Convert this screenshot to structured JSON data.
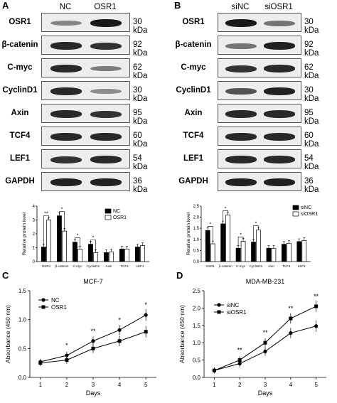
{
  "panels": {
    "A": {
      "letter": "A",
      "lanes": [
        "NC",
        "OSR1"
      ],
      "proteins": [
        "OSR1",
        "β-catenin",
        "C-myc",
        "CyclinD1",
        "Axin",
        "TCF4",
        "LEF1",
        "GAPDH"
      ],
      "sizes": [
        "30 kDa",
        "92 kDa",
        "62 kDa",
        "30 kDa",
        "95 kDa",
        "60 kDa",
        "54 kDa",
        "36 kDa"
      ],
      "band_intensity": [
        [
          0.3,
          0.95
        ],
        [
          0.85,
          0.8
        ],
        [
          0.85,
          0.35
        ],
        [
          0.85,
          0.25
        ],
        [
          0.85,
          0.8
        ],
        [
          0.85,
          0.85
        ],
        [
          0.8,
          0.85
        ],
        [
          0.9,
          0.9
        ]
      ]
    },
    "B": {
      "letter": "B",
      "lanes": [
        "siNC",
        "siOSR1"
      ],
      "proteins": [
        "OSR1",
        "β-catenin",
        "C-myc",
        "CyclinD1",
        "Axin",
        "TCF4",
        "LEF1",
        "GAPDH"
      ],
      "sizes": [
        "30 kDa",
        "92 kDa",
        "62 kDa",
        "30 kDa",
        "95 kDa",
        "60 kDa",
        "54 kDa",
        "36 kDa"
      ],
      "band_intensity": [
        [
          0.95,
          0.4
        ],
        [
          0.4,
          0.9
        ],
        [
          0.8,
          0.85
        ],
        [
          0.6,
          0.9
        ],
        [
          0.85,
          0.85
        ],
        [
          0.85,
          0.85
        ],
        [
          0.85,
          0.85
        ],
        [
          0.9,
          0.9
        ]
      ]
    },
    "C": {
      "letter": "C"
    },
    "D": {
      "letter": "D"
    }
  },
  "chart_data": [
    {
      "type": "bar",
      "panel": "A",
      "ylabel": "Relative protein level",
      "categories": [
        "OSR1",
        "β-catenin",
        "C-myc",
        "CyclinD1",
        "Axin",
        "TCF4",
        "LEF1"
      ],
      "ylim": [
        0,
        4
      ],
      "yticks": [
        "0",
        "1",
        "2",
        "3",
        "4"
      ],
      "series": [
        {
          "name": "NC",
          "color": "#000000",
          "values": [
            1.05,
            3.3,
            1.4,
            1.25,
            0.65,
            0.9,
            1.05
          ]
        },
        {
          "name": "OSR1",
          "color": "#ffffff",
          "values": [
            3.0,
            2.2,
            0.9,
            0.65,
            0.7,
            0.9,
            1.15
          ]
        }
      ],
      "significance": [
        {
          "category": 0,
          "label": "**"
        },
        {
          "category": 1,
          "label": "*"
        },
        {
          "category": 2,
          "label": "*"
        },
        {
          "category": 3,
          "label": "*"
        }
      ],
      "legend": "top-right"
    },
    {
      "type": "bar",
      "panel": "B",
      "ylabel": "Relative protein level",
      "categories": [
        "OSR1",
        "β-catenin",
        "C-myc",
        "CyclinD1",
        "Axin",
        "TCF4",
        "LEF1"
      ],
      "ylim": [
        0,
        2.5
      ],
      "yticks": [
        "0.0",
        "0.5",
        "1.0",
        "1.5",
        "2.0",
        "2.5"
      ],
      "series": [
        {
          "name": "siNC",
          "color": "#000000",
          "values": [
            1.4,
            1.7,
            0.6,
            0.88,
            0.6,
            0.78,
            0.9
          ]
        },
        {
          "name": "siOSR1",
          "color": "#ffffff",
          "values": [
            0.8,
            2.1,
            0.92,
            1.42,
            0.6,
            0.82,
            0.95
          ]
        }
      ],
      "significance": [
        {
          "category": 0,
          "label": "*"
        },
        {
          "category": 1,
          "label": "*"
        },
        {
          "category": 2,
          "label": "*"
        },
        {
          "category": 3,
          "label": "*"
        }
      ],
      "legend": "top-right"
    },
    {
      "type": "line",
      "panel": "C",
      "title": "MCF-7",
      "xlabel": "Days",
      "ylabel": "Absorbance (450 nm)",
      "x": [
        1,
        2,
        3,
        4,
        5
      ],
      "xlim": [
        0.6,
        5.4
      ],
      "ylim": [
        0,
        1.5
      ],
      "yticks": [
        "0.0",
        "0.5",
        "1.0",
        "1.5"
      ],
      "series": [
        {
          "name": "NC",
          "marker": "circle",
          "values": [
            0.27,
            0.38,
            0.63,
            0.82,
            1.08
          ]
        },
        {
          "name": "OSR1",
          "marker": "square",
          "values": [
            0.25,
            0.3,
            0.5,
            0.63,
            0.79
          ]
        }
      ],
      "annotations": [
        {
          "x": 2,
          "label": "*"
        },
        {
          "x": 3,
          "label": "**"
        },
        {
          "x": 4,
          "label": "*"
        },
        {
          "x": 5,
          "label": "*"
        }
      ],
      "legend": "top-left"
    },
    {
      "type": "line",
      "panel": "D",
      "title": "MDA-MB-231",
      "xlabel": "Days",
      "ylabel": "Absorbance (450 nm)",
      "x": [
        1,
        2,
        3,
        4,
        5
      ],
      "xlim": [
        0.6,
        5.4
      ],
      "ylim": [
        0,
        2.5
      ],
      "yticks": [
        "0.0",
        "0.5",
        "1.0",
        "1.5",
        "2.0",
        "2.5"
      ],
      "series": [
        {
          "name": "siNC",
          "marker": "circle",
          "values": [
            0.2,
            0.4,
            0.75,
            1.28,
            1.48
          ]
        },
        {
          "name": "siOSR1",
          "marker": "square",
          "values": [
            0.2,
            0.5,
            1.0,
            1.7,
            2.05
          ]
        }
      ],
      "annotations": [
        {
          "x": 2,
          "label": "**"
        },
        {
          "x": 3,
          "label": "**"
        },
        {
          "x": 4,
          "label": "**"
        },
        {
          "x": 5,
          "label": "**"
        }
      ],
      "legend": "top-left"
    }
  ]
}
